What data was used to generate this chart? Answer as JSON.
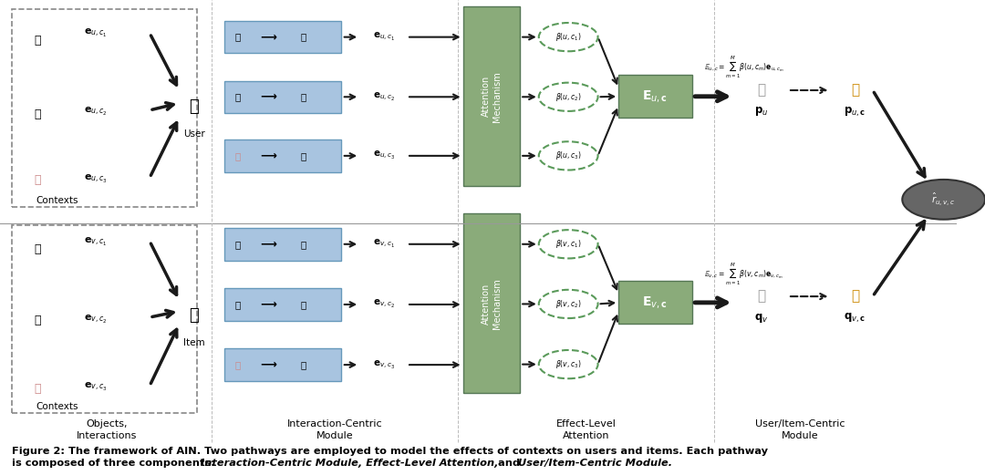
{
  "fig_width": 10.8,
  "fig_height": 5.21,
  "background_color": "#ffffff",
  "caption_line1": "Figure 2: The framework of AIN. Two pathways are employed to model the effects of contexts on users and items. Each pathway",
  "caption_line2": "is composed of three components: ‘Interaction-Centric Module’, ‘Effect-Level Attention’, and ‘User/Item-Centric Module’.",
  "section_labels": [
    "Objects,\nInteractions",
    "Interaction-Centric\nModule",
    "Effect-Level\nAttention",
    "User/Item-Centric\nModule"
  ],
  "context_box_color": "#e8e8e8",
  "interact_box_color": "#a8c4e0",
  "attention_box_color": "#8aab7a",
  "embed_box_color": "#8aab7a",
  "dashed_circle_color": "#6aaa6a",
  "arrow_color": "#1a1a1a"
}
